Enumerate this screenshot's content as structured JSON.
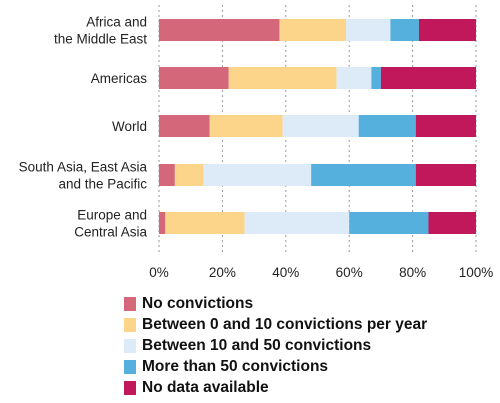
{
  "chart_data": {
    "type": "bar",
    "orientation": "horizontal",
    "stacked": true,
    "categories": [
      [
        "Africa and",
        "the Middle East"
      ],
      [
        "Americas"
      ],
      [
        "World"
      ],
      [
        "South Asia, East Asia",
        "and the Pacific"
      ],
      [
        "Europe and",
        "Central Asia"
      ]
    ],
    "series": [
      {
        "name": "No convictions",
        "color": "#d4687a",
        "values": [
          38,
          22,
          16,
          5,
          2
        ]
      },
      {
        "name": "Between 0 and 10 convictions per year",
        "color": "#fdd58a",
        "values": [
          21,
          34,
          23,
          9,
          25
        ]
      },
      {
        "name": "Between 10 and 50 convictions",
        "color": "#ddeaf8",
        "values": [
          14,
          11,
          24,
          34,
          33
        ]
      },
      {
        "name": "More than 50 convictions",
        "color": "#55b0de",
        "values": [
          9,
          3,
          18,
          33,
          25
        ]
      },
      {
        "name": "No data available",
        "color": "#c0185a",
        "values": [
          18,
          30,
          19,
          19,
          15
        ]
      }
    ],
    "xlim": [
      0,
      100
    ],
    "xticks": [
      "0%",
      "20%",
      "40%",
      "60%",
      "80%",
      "100%"
    ],
    "grid": true,
    "legend_position": "bottom"
  }
}
